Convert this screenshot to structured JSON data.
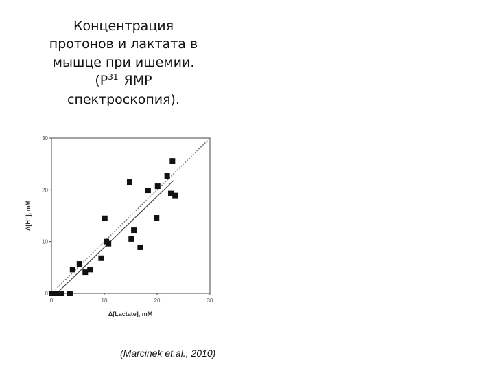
{
  "slide": {
    "title_lines": [
      "Концентрация",
      "протонов и лактата в",
      "мышце при ишемии."
    ],
    "title_line4": [
      "(P",
      "31",
      "ЯМР"
    ],
    "title_line5": "спектроскопия).",
    "citation": "(Marcinek et.al., 2010)"
  },
  "chart_data": {
    "type": "scatter",
    "x": [
      0,
      0.6,
      1.3,
      1.9,
      3.5,
      4,
      5.3,
      6.4,
      7.3,
      9.4,
      10.1,
      10.4,
      10.8,
      14.8,
      15.1,
      15.6,
      16.8,
      18.3,
      19.9,
      20.1,
      21.9,
      22.6,
      22.9,
      23.4
    ],
    "values": [
      0,
      0,
      0,
      0,
      0,
      4.6,
      5.7,
      4.1,
      4.6,
      6.8,
      14.5,
      10,
      9.6,
      21.5,
      10.5,
      12.2,
      8.9,
      19.9,
      14.6,
      20.7,
      22.7,
      19.3,
      25.6,
      18.9
    ],
    "color": "#111111",
    "identity_line": {
      "x": [
        0,
        30
      ],
      "y": [
        0,
        30
      ]
    },
    "fit_line": {
      "x": [
        1,
        23.1
      ],
      "y": [
        0,
        21.8
      ]
    },
    "xlabel": "Δ[Lactate], mM",
    "ylabel": "Δ[H⁺], mM",
    "xlim": [
      0,
      30
    ],
    "ylim": [
      0,
      30
    ],
    "xticks": [
      0,
      10,
      20,
      30
    ],
    "yticks": [
      0,
      10,
      20,
      30
    ]
  }
}
